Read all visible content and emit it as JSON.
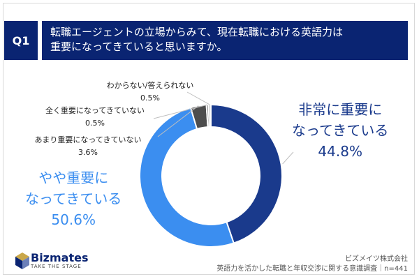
{
  "question": {
    "badge": "Q1",
    "line1": "転職エージェントの立場からみて、現在転職における英語力は",
    "line2": "重要になってきていると思いますか。"
  },
  "chart_data": {
    "type": "pie",
    "donut": true,
    "slices": [
      {
        "label_lines": [
          "非常に重要に",
          "なってきている"
        ],
        "value": 44.8,
        "value_label": "44.8%",
        "color": "#1a3a8c"
      },
      {
        "label_lines": [
          "やや重要に",
          "なってきている"
        ],
        "value": 50.6,
        "value_label": "50.6%",
        "color": "#3b8ef0"
      },
      {
        "label_lines": [
          "あまり重要になってきていない"
        ],
        "value": 3.6,
        "value_label": "3.6%",
        "color": "#4d4d4d"
      },
      {
        "label_lines": [
          "全く重要になってきていない"
        ],
        "value": 0.5,
        "value_label": "0.5%",
        "color": "#8c8c8c"
      },
      {
        "label_lines": [
          "わからない/答えられない"
        ],
        "value": 0.5,
        "value_label": "0.5%",
        "color": "#bfbfbf"
      }
    ],
    "legend": "none"
  },
  "brand": {
    "name": "Bizmates",
    "tagline": "TAKE THE STAGE"
  },
  "source": {
    "company": "ビズメイツ株式会社",
    "survey": "英語力を活かした転職と年収交渉に関する意識調査｜n=441"
  }
}
